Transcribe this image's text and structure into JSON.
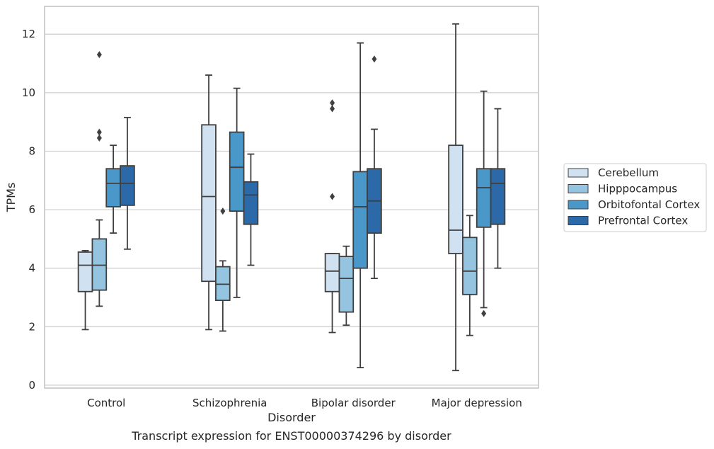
{
  "caption": "Transcript expression for ENST00000374296 by disorder",
  "chart_data": {
    "type": "box",
    "xlabel": "Disorder",
    "ylabel": "TPMs",
    "ylim": [
      -0.1,
      12.95
    ],
    "yticks": [
      0,
      2,
      4,
      6,
      8,
      10,
      12
    ],
    "grid": "horizontal",
    "legend_position": "right",
    "categories": [
      "Control",
      "Schizophrenia",
      "Bipolar disorder",
      "Major depression"
    ],
    "series": [
      {
        "name": "Cerebellum",
        "color": "#d0e1f2",
        "boxes": [
          {
            "whisker_low": 1.9,
            "q1": 3.2,
            "median": 4.1,
            "q3": 4.55,
            "whisker_high": 4.6,
            "outliers": []
          },
          {
            "whisker_low": 1.9,
            "q1": 3.55,
            "median": 6.45,
            "q3": 8.9,
            "whisker_high": 10.6,
            "outliers": []
          },
          {
            "whisker_low": 1.8,
            "q1": 3.2,
            "median": 3.9,
            "q3": 4.5,
            "whisker_high": 4.5,
            "outliers": [
              6.45,
              9.45,
              9.65
            ]
          },
          {
            "whisker_low": 0.5,
            "q1": 4.5,
            "median": 5.3,
            "q3": 8.2,
            "whisker_high": 12.35,
            "outliers": []
          }
        ]
      },
      {
        "name": "Hipppocampus",
        "color": "#94c4df",
        "boxes": [
          {
            "whisker_low": 2.7,
            "q1": 3.25,
            "median": 4.1,
            "q3": 5.0,
            "whisker_high": 5.65,
            "outliers": [
              8.45,
              8.65,
              11.3
            ]
          },
          {
            "whisker_low": 1.85,
            "q1": 2.9,
            "median": 3.45,
            "q3": 4.05,
            "whisker_high": 4.25,
            "outliers": [
              5.95
            ]
          },
          {
            "whisker_low": 2.05,
            "q1": 2.5,
            "median": 3.65,
            "q3": 4.4,
            "whisker_high": 4.75,
            "outliers": []
          },
          {
            "whisker_low": 1.7,
            "q1": 3.1,
            "median": 3.9,
            "q3": 5.05,
            "whisker_high": 5.8,
            "outliers": []
          }
        ]
      },
      {
        "name": "Orbitofontal Cortex",
        "color": "#4a98c9",
        "boxes": [
          {
            "whisker_low": 5.2,
            "q1": 6.1,
            "median": 6.9,
            "q3": 7.4,
            "whisker_high": 8.2,
            "outliers": []
          },
          {
            "whisker_low": 3.0,
            "q1": 5.95,
            "median": 7.45,
            "q3": 8.65,
            "whisker_high": 10.15,
            "outliers": []
          },
          {
            "whisker_low": 0.6,
            "q1": 4.0,
            "median": 6.1,
            "q3": 7.3,
            "whisker_high": 11.7,
            "outliers": []
          },
          {
            "whisker_low": 2.65,
            "q1": 5.4,
            "median": 6.75,
            "q3": 7.4,
            "whisker_high": 10.05,
            "outliers": [
              2.45
            ]
          }
        ]
      },
      {
        "name": "Prefrontal Cortex",
        "color": "#2b69a8",
        "boxes": [
          {
            "whisker_low": 4.65,
            "q1": 6.15,
            "median": 6.9,
            "q3": 7.5,
            "whisker_high": 9.15,
            "outliers": []
          },
          {
            "whisker_low": 4.1,
            "q1": 5.5,
            "median": 6.5,
            "q3": 6.95,
            "whisker_high": 7.9,
            "outliers": []
          },
          {
            "whisker_low": 3.65,
            "q1": 5.2,
            "median": 6.3,
            "q3": 7.4,
            "whisker_high": 8.75,
            "outliers": [
              11.15
            ]
          },
          {
            "whisker_low": 4.0,
            "q1": 5.5,
            "median": 6.9,
            "q3": 7.4,
            "whisker_high": 9.45,
            "outliers": []
          }
        ]
      }
    ]
  }
}
